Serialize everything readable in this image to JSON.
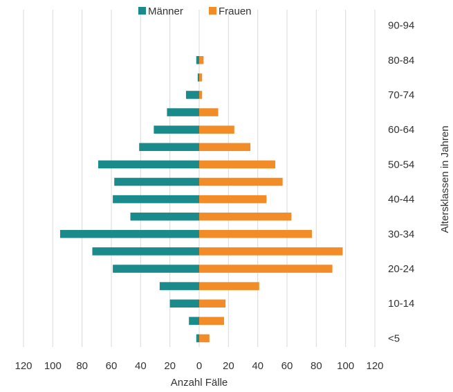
{
  "chart_data": {
    "type": "bar",
    "orientation": "horizontal",
    "layout": "population-pyramid",
    "categories": [
      "<5",
      "5-9",
      "10-14",
      "15-19",
      "20-24",
      "25-29",
      "30-34",
      "35-39",
      "40-44",
      "45-49",
      "50-54",
      "55-59",
      "60-64",
      "65-69",
      "70-74",
      "75-79",
      "80-84",
      "85-89",
      "90-94"
    ],
    "category_tick_labels": [
      "<5",
      "10-14",
      "20-24",
      "30-34",
      "40-44",
      "50-54",
      "60-64",
      "70-74",
      "80-84",
      "90-94"
    ],
    "series": [
      {
        "name": "Männer",
        "color": "#1a8a8a",
        "direction": "left",
        "values": [
          2,
          7,
          20,
          27,
          59,
          73,
          95,
          47,
          59,
          58,
          69,
          41,
          31,
          22,
          9,
          1,
          2,
          0,
          0
        ]
      },
      {
        "name": "Frauen",
        "color": "#f28c28",
        "direction": "right",
        "values": [
          7,
          17,
          18,
          41,
          91,
          98,
          77,
          63,
          46,
          57,
          52,
          35,
          24,
          13,
          2,
          2,
          3,
          0,
          0
        ]
      }
    ],
    "xlabel": "Anzahl Fälle",
    "ylabel": "Altersklassen in Jahren",
    "xlim": [
      -120,
      120
    ],
    "xticks": [
      -120,
      -100,
      -80,
      -60,
      -40,
      -20,
      0,
      20,
      40,
      60,
      80,
      100,
      120
    ],
    "xtick_labels": [
      "120",
      "100",
      "80",
      "60",
      "40",
      "20",
      "0",
      "20",
      "40",
      "60",
      "80",
      "100",
      "120"
    ],
    "grid": "vertical",
    "legend_position": "top"
  }
}
